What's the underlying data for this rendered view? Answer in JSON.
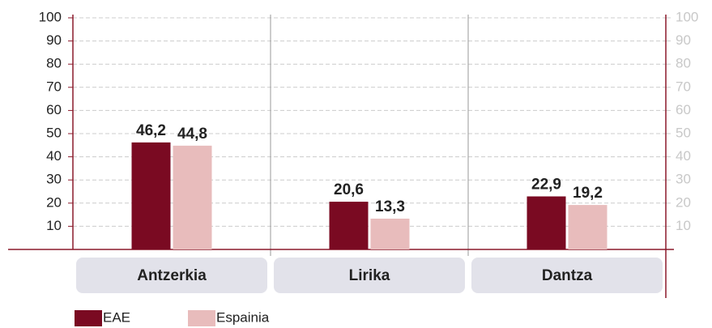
{
  "chart_data": {
    "type": "bar",
    "categories": [
      "Antzerkia",
      "Lirika",
      "Dantza"
    ],
    "series": [
      {
        "name": "EAE",
        "color": "#7a0a22",
        "values": [
          46.2,
          20.6,
          22.9
        ],
        "value_labels": [
          "46,2",
          "20,6",
          "22,9"
        ]
      },
      {
        "name": "Espainia",
        "color": "#e8bcbc",
        "values": [
          44.8,
          13.3,
          19.2
        ],
        "value_labels": [
          "44,8",
          "13,3",
          "19,2"
        ]
      }
    ],
    "ylim": [
      0,
      100
    ],
    "yticks": [
      10,
      20,
      30,
      40,
      50,
      60,
      70,
      80,
      90,
      100
    ],
    "y2lim": [
      0,
      100
    ],
    "y2ticks": [
      10,
      20,
      30,
      40,
      50,
      60,
      70,
      80,
      90,
      100
    ],
    "grid": true,
    "legend": "bottom-left"
  }
}
